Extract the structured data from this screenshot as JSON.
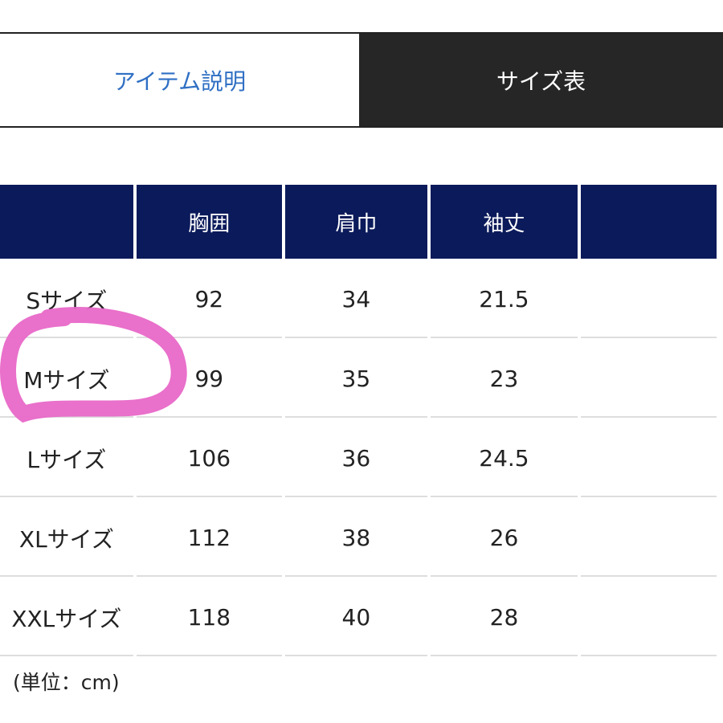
{
  "tabs": [
    {
      "label": "アイテム説明",
      "active": false
    },
    {
      "label": "サイズ表",
      "active": true
    }
  ],
  "table": {
    "headers": [
      "",
      "胸囲",
      "肩巾",
      "袖丈",
      ""
    ],
    "rows": [
      [
        "Sサイズ",
        "92",
        "34",
        "21.5",
        ""
      ],
      [
        "Mサイズ",
        "99",
        "35",
        "23",
        ""
      ],
      [
        "Lサイズ",
        "106",
        "36",
        "24.5",
        ""
      ],
      [
        "XLサイズ",
        "112",
        "38",
        "26",
        ""
      ],
      [
        "XXLサイズ",
        "118",
        "40",
        "28",
        ""
      ]
    ]
  },
  "unit_note": "(単位：cm)",
  "colors": {
    "header_bg": "#0b1a5a",
    "tab_active_bg": "#262626",
    "tab_link": "#2f6fc4",
    "annotation": "#e868c8"
  }
}
